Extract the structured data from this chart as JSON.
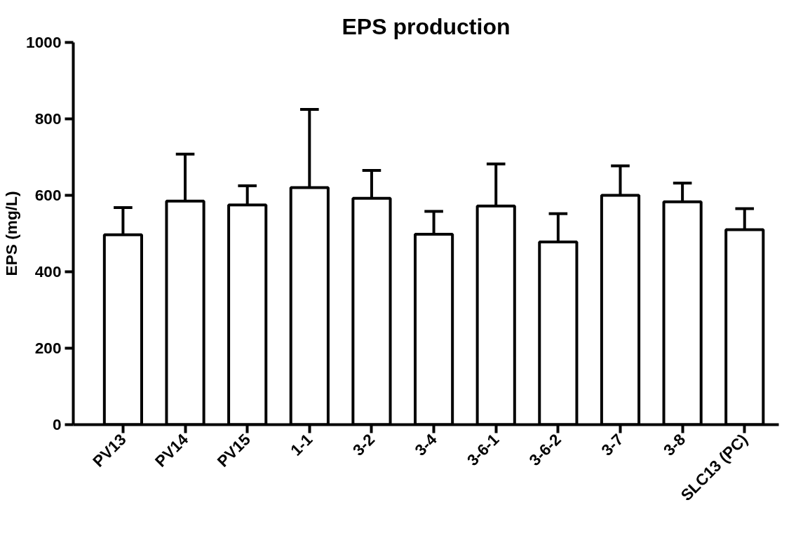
{
  "chart_data": {
    "type": "bar",
    "title": "EPS production",
    "ylabel": "EPS (mg/L)",
    "categories": [
      "PV13",
      "PV14",
      "PV15",
      "1-1",
      "3-2",
      "3-4",
      "3-6-1",
      "3-6-2",
      "3-7",
      "3-8",
      "SLC13 (PC)"
    ],
    "values": [
      497,
      585,
      575,
      620,
      592,
      498,
      572,
      478,
      600,
      583,
      510
    ],
    "errors": [
      [
        497,
        568
      ],
      [
        585,
        708
      ],
      [
        575,
        625
      ],
      [
        620,
        825
      ],
      [
        592,
        665
      ],
      [
        498,
        558
      ],
      [
        572,
        682
      ],
      [
        478,
        552
      ],
      [
        600,
        677
      ],
      [
        583,
        632
      ],
      [
        510,
        565
      ]
    ],
    "color": "#ffffff",
    "ylim": [
      0,
      1000
    ],
    "yticks": [
      0,
      200,
      400,
      600,
      800,
      1000
    ],
    "grid": false
  }
}
